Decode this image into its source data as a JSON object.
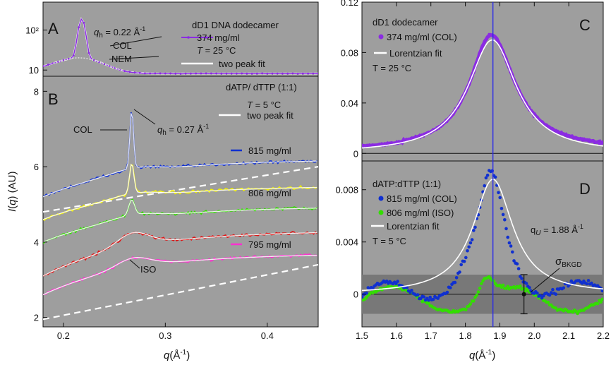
{
  "colors": {
    "plot_bg": "#9e9e9e",
    "purple": "#8b2be2",
    "blue": "#1030d0",
    "yellow": "#f0f000",
    "green": "#33dd00",
    "red": "#e01515",
    "magenta": "#ff2fd0",
    "fit": "#ffffff",
    "band": "#787878",
    "vline": "#2a2ae8"
  },
  "chart_data": [
    {
      "panel": "A",
      "type": "line",
      "title": "dD1 DNA dodecamer",
      "x_range": [
        0.18,
        0.45
      ],
      "y_scale": "log",
      "y_range": [
        7,
        500
      ],
      "y_ticks": [
        {
          "value": 10,
          "label": "10"
        },
        {
          "value": 100,
          "label": "10²"
        }
      ],
      "annotations": [
        "q_h = 0.22 Å⁻¹",
        "COL",
        "NEM",
        "T = 25 °C"
      ],
      "legend": [
        {
          "label": "374 mg/ml",
          "color": "purple",
          "style": "line-points"
        },
        {
          "label": "two peak fit",
          "color": "fit",
          "style": "line"
        }
      ],
      "series": [
        {
          "name": "374 mg/ml",
          "color": "purple",
          "model": {
            "base_a": 8.2,
            "base_b": 60,
            "peak_center": 0.218,
            "peak_amp": 170,
            "peak_width": 0.004,
            "nem_amp": 12,
            "nem_center": 0.215,
            "nem_width": 0.03,
            "noise": 0.05
          }
        }
      ]
    },
    {
      "panel": "B",
      "type": "line",
      "title": "dATP/ dTTP (1:1)",
      "x_range": [
        0.18,
        0.45
      ],
      "x_ticks": [
        0.2,
        0.3,
        0.4
      ],
      "y_range": [
        1.75,
        8.4
      ],
      "y_ticks": [
        2,
        4,
        6,
        8
      ],
      "xlabel": "q(Å⁻¹)",
      "ylabel": "I(q) (AU)",
      "annotations": [
        "COL",
        "q_h = 0.27 Å⁻¹",
        "T = 5 °C",
        "ISO"
      ],
      "legend": [
        {
          "label": "two peak fit",
          "color": "fit",
          "style": "line"
        }
      ],
      "series": [
        {
          "name": "815 mg/ml",
          "color": "blue",
          "model": {
            "start": 5.2,
            "plateau": 6.15,
            "peak_center": 0.267,
            "peak_amp": 1.55,
            "peak_width": 0.0025
          }
        },
        {
          "name": "",
          "color": "yellow",
          "model": {
            "start": 4.6,
            "plateau": 5.45,
            "peak_center": 0.267,
            "peak_amp": 0.8,
            "peak_width": 0.003
          }
        },
        {
          "name": "806 mg/ml",
          "color": "green",
          "model": {
            "start": 4.0,
            "plateau": 4.9,
            "peak_center": 0.267,
            "peak_amp": 0.4,
            "peak_width": 0.004
          }
        },
        {
          "name": "",
          "color": "red",
          "model": {
            "start": 3.1,
            "plateau": 4.25,
            "peak_center": 0.268,
            "peak_amp": 0.25,
            "peak_width": 0.02
          }
        },
        {
          "name": "795 mg/ml",
          "color": "magenta",
          "model": {
            "start": 2.6,
            "plateau": 3.65,
            "peak_center": 0.268,
            "peak_amp": 0.15,
            "peak_width": 0.02
          }
        }
      ],
      "dashed_baselines": [
        {
          "x": [
            0.18,
            0.45
          ],
          "y": [
            4.8,
            6.0
          ]
        },
        {
          "x": [
            0.18,
            0.45
          ],
          "y": [
            1.95,
            3.4
          ]
        }
      ]
    },
    {
      "panel": "C",
      "type": "line",
      "title": "dD1 dodecamer",
      "x_range": [
        1.5,
        2.2
      ],
      "y_range": [
        -0.006,
        0.12
      ],
      "y_ticks": [
        0,
        0.04,
        0.08,
        0.12
      ],
      "annotations": [
        "T = 25 °C"
      ],
      "legend": [
        {
          "label": "374 mg/ml (COL)",
          "color": "purple",
          "style": "dots"
        },
        {
          "label": "Lorentzian fit",
          "color": "fit",
          "style": "line"
        }
      ],
      "series": [
        {
          "name": "374 mg/ml (COL)",
          "color": "purple",
          "model": {
            "center": 1.875,
            "amp": 0.091,
            "hwhm": 0.075,
            "base": 0.003,
            "skew": 0.01
          }
        }
      ],
      "fit": {
        "center": 1.878,
        "amp": 0.09,
        "hwhm": 0.085,
        "base": 0.0
      }
    },
    {
      "panel": "D",
      "type": "scatter",
      "title": "dATP:dTTP (1:1)",
      "x_range": [
        1.5,
        2.2
      ],
      "x_ticks": [
        1.5,
        1.6,
        1.7,
        1.8,
        1.9,
        2.0,
        2.1,
        2.2
      ],
      "y_range": [
        -0.0025,
        0.0102
      ],
      "y_ticks": [
        0,
        0.004,
        0.008
      ],
      "xlabel": "q(Å⁻¹)",
      "annotations": [
        "q_U = 1.88 Å⁻¹",
        "σ_BKGD",
        "T = 5 °C"
      ],
      "legend": [
        {
          "label": "815 mg/ml (COL)",
          "color": "blue",
          "style": "dots"
        },
        {
          "label": "806 mg/ml (ISO)",
          "color": "green",
          "style": "dots"
        },
        {
          "label": "Lorentzian fit",
          "color": "fit",
          "style": "line"
        }
      ],
      "series": [
        {
          "name": "815 mg/ml (COL)",
          "color": "blue",
          "model": {
            "center": 1.875,
            "amp": 0.0088,
            "hwhm": 0.05,
            "wave_amp": 0.0015
          }
        },
        {
          "name": "806 mg/ml (ISO)",
          "color": "green",
          "model": {
            "wave_amp": 0.0012,
            "bump_center": 1.86,
            "bump_amp": 0.0015
          }
        }
      ],
      "fit": {
        "center": 1.88,
        "amp": 0.0088,
        "hwhm": 0.07
      },
      "sigma_band": [
        -0.0015,
        0.0015
      ],
      "error_bar": {
        "x": 1.97,
        "y": 0.0,
        "err": 0.0015
      }
    }
  ],
  "vline_q": 1.88,
  "texts": {
    "panel_A": "A",
    "panel_B": "B",
    "panel_C": "C",
    "panel_D": "D",
    "a_title": "dD1 DNA dodecamer",
    "a_qh_prefix": "q",
    "a_qh_sub": "h",
    "a_qh_value": " = 0.22 Å",
    "a_qh_sup": "-1",
    "a_col": "COL",
    "a_nem": "NEM",
    "a_leg1": "374 mg/ml",
    "a_T_prefix": "T",
    "a_T_value": " = 25 °C",
    "a_leg2": "two peak fit",
    "b_title": "dATP/ dTTP (1:1)",
    "b_T_prefix": "T",
    "b_T_value": " = 5 °C",
    "b_leg": "two peak fit",
    "b_col": "COL",
    "b_qh_prefix": "q",
    "b_qh_sub": "h",
    "b_qh_value": " = 0.27 Å",
    "b_qh_sup": "-1",
    "b_815": "815 mg/ml",
    "b_806": "806 mg/ml",
    "b_795": "795 mg/ml",
    "b_iso": "ISO",
    "b_ylabel_I": "I",
    "b_ylabel_q": "q",
    "b_ylabel_rest1": "(",
    "b_ylabel_rest2": ") (AU)",
    "c_title": "dD1 dodecamer",
    "c_leg1": "374 mg/ml (COL)",
    "c_leg2": "Lorentzian fit",
    "c_T": "T = 25 °C",
    "d_title": "dATP:dTTP (1:1)",
    "d_leg1": "815 mg/ml (COL)",
    "d_leg2": "806 mg/ml (ISO)",
    "d_leg3": "Lorentzian fit",
    "d_T": "T = 5 °C",
    "d_qu_prefix": "q",
    "d_qu_sub": "U",
    "d_qu_value": " = 1.88 Å",
    "d_qu_sup": "-1",
    "d_sigma": "σ",
    "d_sigma_sub": "BKGD",
    "xlabel_q": "q",
    "xlabel_rest": "(Å",
    "xlabel_sup": "-1",
    "xlabel_end": ")"
  }
}
